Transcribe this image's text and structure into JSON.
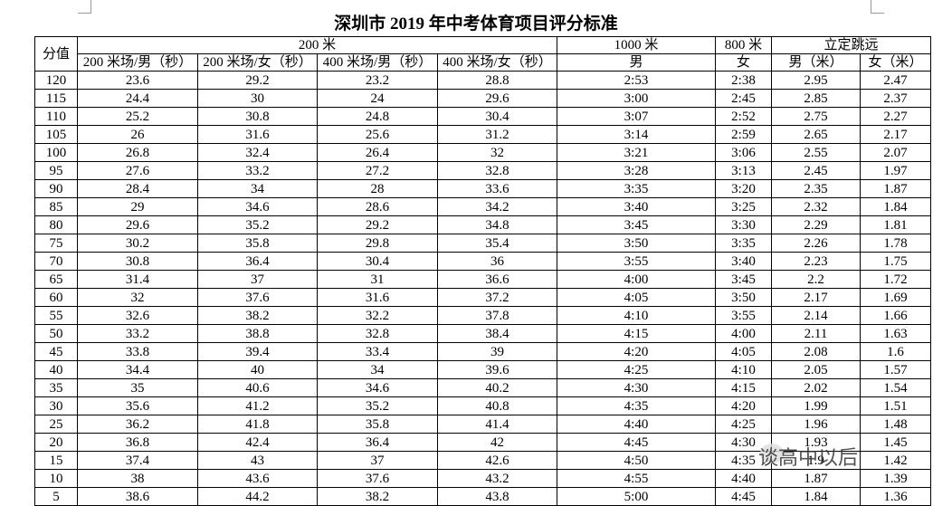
{
  "header": {
    "title": "深圳市 2019 年中考体育项目评分标准"
  },
  "table": {
    "group_headers": [
      "分值",
      "200 米",
      "1000 米",
      "800 米",
      "立定跳远"
    ],
    "sub_headers": [
      "200 米场/男（秒）",
      "200 米场/女（秒）",
      "400 米场/男（秒）",
      "400 米场/女（秒）",
      "男",
      "女",
      "男（米）",
      "女（米）"
    ],
    "rows": [
      [
        "120",
        "23.6",
        "29.2",
        "23.2",
        "28.8",
        "2:53",
        "2:38",
        "2.95",
        "2.47"
      ],
      [
        "115",
        "24.4",
        "30",
        "24",
        "29.6",
        "3:00",
        "2:45",
        "2.85",
        "2.37"
      ],
      [
        "110",
        "25.2",
        "30.8",
        "24.8",
        "30.4",
        "3:07",
        "2:52",
        "2.75",
        "2.27"
      ],
      [
        "105",
        "26",
        "31.6",
        "25.6",
        "31.2",
        "3:14",
        "2:59",
        "2.65",
        "2.17"
      ],
      [
        "100",
        "26.8",
        "32.4",
        "26.4",
        "32",
        "3:21",
        "3:06",
        "2.55",
        "2.07"
      ],
      [
        "95",
        "27.6",
        "33.2",
        "27.2",
        "32.8",
        "3:28",
        "3:13",
        "2.45",
        "1.97"
      ],
      [
        "90",
        "28.4",
        "34",
        "28",
        "33.6",
        "3:35",
        "3:20",
        "2.35",
        "1.87"
      ],
      [
        "85",
        "29",
        "34.6",
        "28.6",
        "34.2",
        "3:40",
        "3:25",
        "2.32",
        "1.84"
      ],
      [
        "80",
        "29.6",
        "35.2",
        "29.2",
        "34.8",
        "3:45",
        "3:30",
        "2.29",
        "1.81"
      ],
      [
        "75",
        "30.2",
        "35.8",
        "29.8",
        "35.4",
        "3:50",
        "3:35",
        "2.26",
        "1.78"
      ],
      [
        "70",
        "30.8",
        "36.4",
        "30.4",
        "36",
        "3:55",
        "3:40",
        "2.23",
        "1.75"
      ],
      [
        "65",
        "31.4",
        "37",
        "31",
        "36.6",
        "4:00",
        "3:45",
        "2.2",
        "1.72"
      ],
      [
        "60",
        "32",
        "37.6",
        "31.6",
        "37.2",
        "4:05",
        "3:50",
        "2.17",
        "1.69"
      ],
      [
        "55",
        "32.6",
        "38.2",
        "32.2",
        "37.8",
        "4:10",
        "3:55",
        "2.14",
        "1.66"
      ],
      [
        "50",
        "33.2",
        "38.8",
        "32.8",
        "38.4",
        "4:15",
        "4:00",
        "2.11",
        "1.63"
      ],
      [
        "45",
        "33.8",
        "39.4",
        "33.4",
        "39",
        "4:20",
        "4:05",
        "2.08",
        "1.6"
      ],
      [
        "40",
        "34.4",
        "40",
        "34",
        "39.6",
        "4:25",
        "4:10",
        "2.05",
        "1.57"
      ],
      [
        "35",
        "35",
        "40.6",
        "34.6",
        "40.2",
        "4:30",
        "4:15",
        "2.02",
        "1.54"
      ],
      [
        "30",
        "35.6",
        "41.2",
        "35.2",
        "40.8",
        "4:35",
        "4:20",
        "1.99",
        "1.51"
      ],
      [
        "25",
        "36.2",
        "41.8",
        "35.8",
        "41.4",
        "4:40",
        "4:25",
        "1.96",
        "1.48"
      ],
      [
        "20",
        "36.8",
        "42.4",
        "36.4",
        "42",
        "4:45",
        "4:30",
        "1.93",
        "1.45"
      ],
      [
        "15",
        "37.4",
        "43",
        "37",
        "42.6",
        "4:50",
        "4:35",
        "1.9",
        "1.42"
      ],
      [
        "10",
        "38",
        "43.6",
        "37.6",
        "43.2",
        "4:55",
        "4:40",
        "1.87",
        "1.39"
      ],
      [
        "5",
        "38.6",
        "44.2",
        "38.2",
        "43.8",
        "5:00",
        "4:45",
        "1.84",
        "1.36"
      ]
    ]
  },
  "watermark": "谈高中以后"
}
